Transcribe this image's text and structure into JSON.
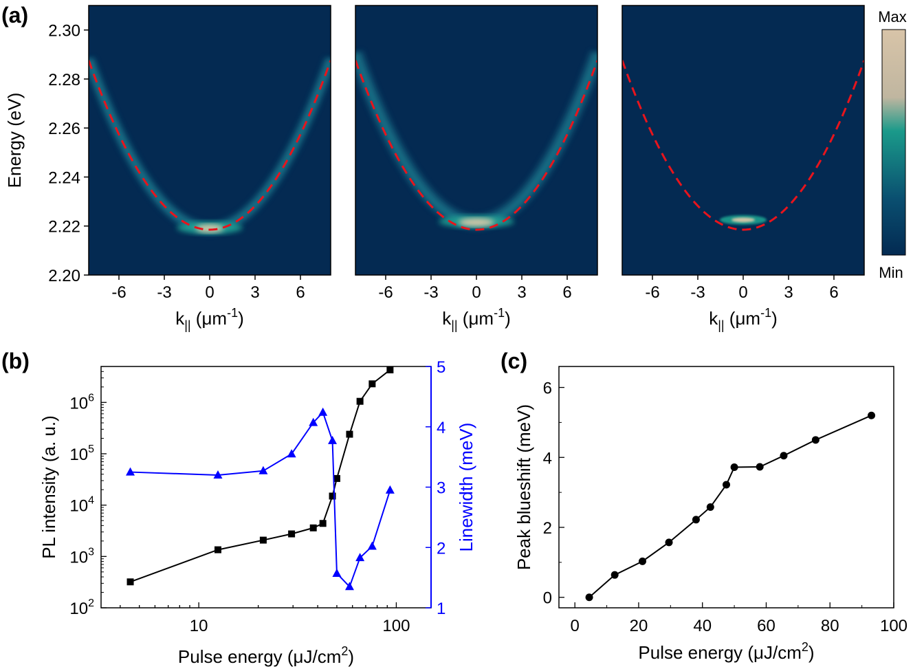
{
  "chart_data": [
    {
      "id": "a",
      "type": "heatmap",
      "panel_label": "(a)",
      "panels": 3,
      "ylabel": "Energy (eV)",
      "xlabel_main": "k",
      "xlabel_sub": "||",
      "xlabel_unit_pre": " (μm",
      "xlabel_unit_sup": "-1",
      "xlabel_unit_post": ")",
      "xlim": [
        -8,
        8
      ],
      "ylim": [
        2.2,
        2.31
      ],
      "xticks": [
        -6,
        -3,
        0,
        3,
        6
      ],
      "yticks": [
        "2.20",
        "2.22",
        "2.24",
        "2.26",
        "2.28",
        "2.30"
      ],
      "ytick_values": [
        2.2,
        2.22,
        2.24,
        2.26,
        2.28,
        2.3
      ],
      "dispersion": {
        "E0": 2.2185,
        "curvature_eV_per_um2": 0.00108,
        "style": "red dashed"
      },
      "emission_center": [
        2.219,
        2.2215,
        2.2225
      ],
      "colorbar": {
        "max_label": "Max",
        "min_label": "Min",
        "colors": [
          "#d8c4a8",
          "#c0b6a0",
          "#1a9a8a",
          "#0a4f70",
          "#032a52"
        ]
      }
    },
    {
      "id": "b",
      "type": "line",
      "panel_label": "(b)",
      "xlabel_pre": "Pulse energy (μJ/cm",
      "xlabel_sup": "2",
      "xlabel_post": ")",
      "ylabel": "PL intensity (a. u.)",
      "ylabel_right": "Linewidth (meV)",
      "xscale": "log",
      "xlim": [
        3.2,
        150
      ],
      "xticks": [
        10,
        100
      ],
      "xtick_labels": [
        "10",
        "100"
      ],
      "ylim_log_exp": [
        2,
        6.7
      ],
      "ytick_exps": [
        2,
        3,
        4,
        5,
        6
      ],
      "ytick_base": "10",
      "ytick_sups": [
        "2",
        "3",
        "4",
        "5",
        "6"
      ],
      "ylim_right": [
        1,
        5
      ],
      "yticks_right": [
        "1",
        "2",
        "3",
        "4",
        "5"
      ],
      "series": [
        {
          "name": "PL intensity",
          "color": "#000000",
          "marker": "square",
          "axis": "left",
          "x": [
            4.5,
            12.5,
            21.2,
            29.5,
            38.0,
            42.5,
            47.5,
            50.0,
            58.0,
            65.5,
            75.5,
            93.0
          ],
          "y": [
            320,
            1350,
            2080,
            2750,
            3600,
            4400,
            15000,
            33000,
            240000,
            1050000,
            2300000,
            4300000
          ]
        },
        {
          "name": "Linewidth",
          "color": "#0000ff",
          "marker": "triangle",
          "axis": "right",
          "x": [
            4.5,
            12.5,
            21.2,
            29.5,
            38.0,
            42.5,
            47.5,
            50.0,
            58.0,
            65.5,
            75.5,
            93.0
          ],
          "y": [
            3.25,
            3.2,
            3.27,
            3.55,
            4.07,
            4.24,
            3.77,
            1.57,
            1.35,
            1.83,
            2.02,
            2.95
          ]
        }
      ]
    },
    {
      "id": "c",
      "type": "line",
      "panel_label": "(c)",
      "xlabel_pre": "Pulse energy (μJ/cm",
      "xlabel_sup": "2",
      "xlabel_post": ")",
      "ylabel": "Peak blueshift (meV)",
      "xlim": [
        -5,
        100
      ],
      "ylim": [
        -0.3,
        6.6
      ],
      "xticks": [
        0,
        20,
        40,
        60,
        80,
        100
      ],
      "yticks": [
        0,
        2,
        4,
        6
      ],
      "series": [
        {
          "name": "Peak blueshift",
          "color": "#000000",
          "marker": "circle",
          "x": [
            4.5,
            12.5,
            21.2,
            29.5,
            38.0,
            42.5,
            47.5,
            50.0,
            58.0,
            65.5,
            75.5,
            93.0
          ],
          "y": [
            0.0,
            0.64,
            1.03,
            1.57,
            2.22,
            2.58,
            3.22,
            3.72,
            3.73,
            4.05,
            4.5,
            5.2
          ]
        }
      ]
    }
  ]
}
